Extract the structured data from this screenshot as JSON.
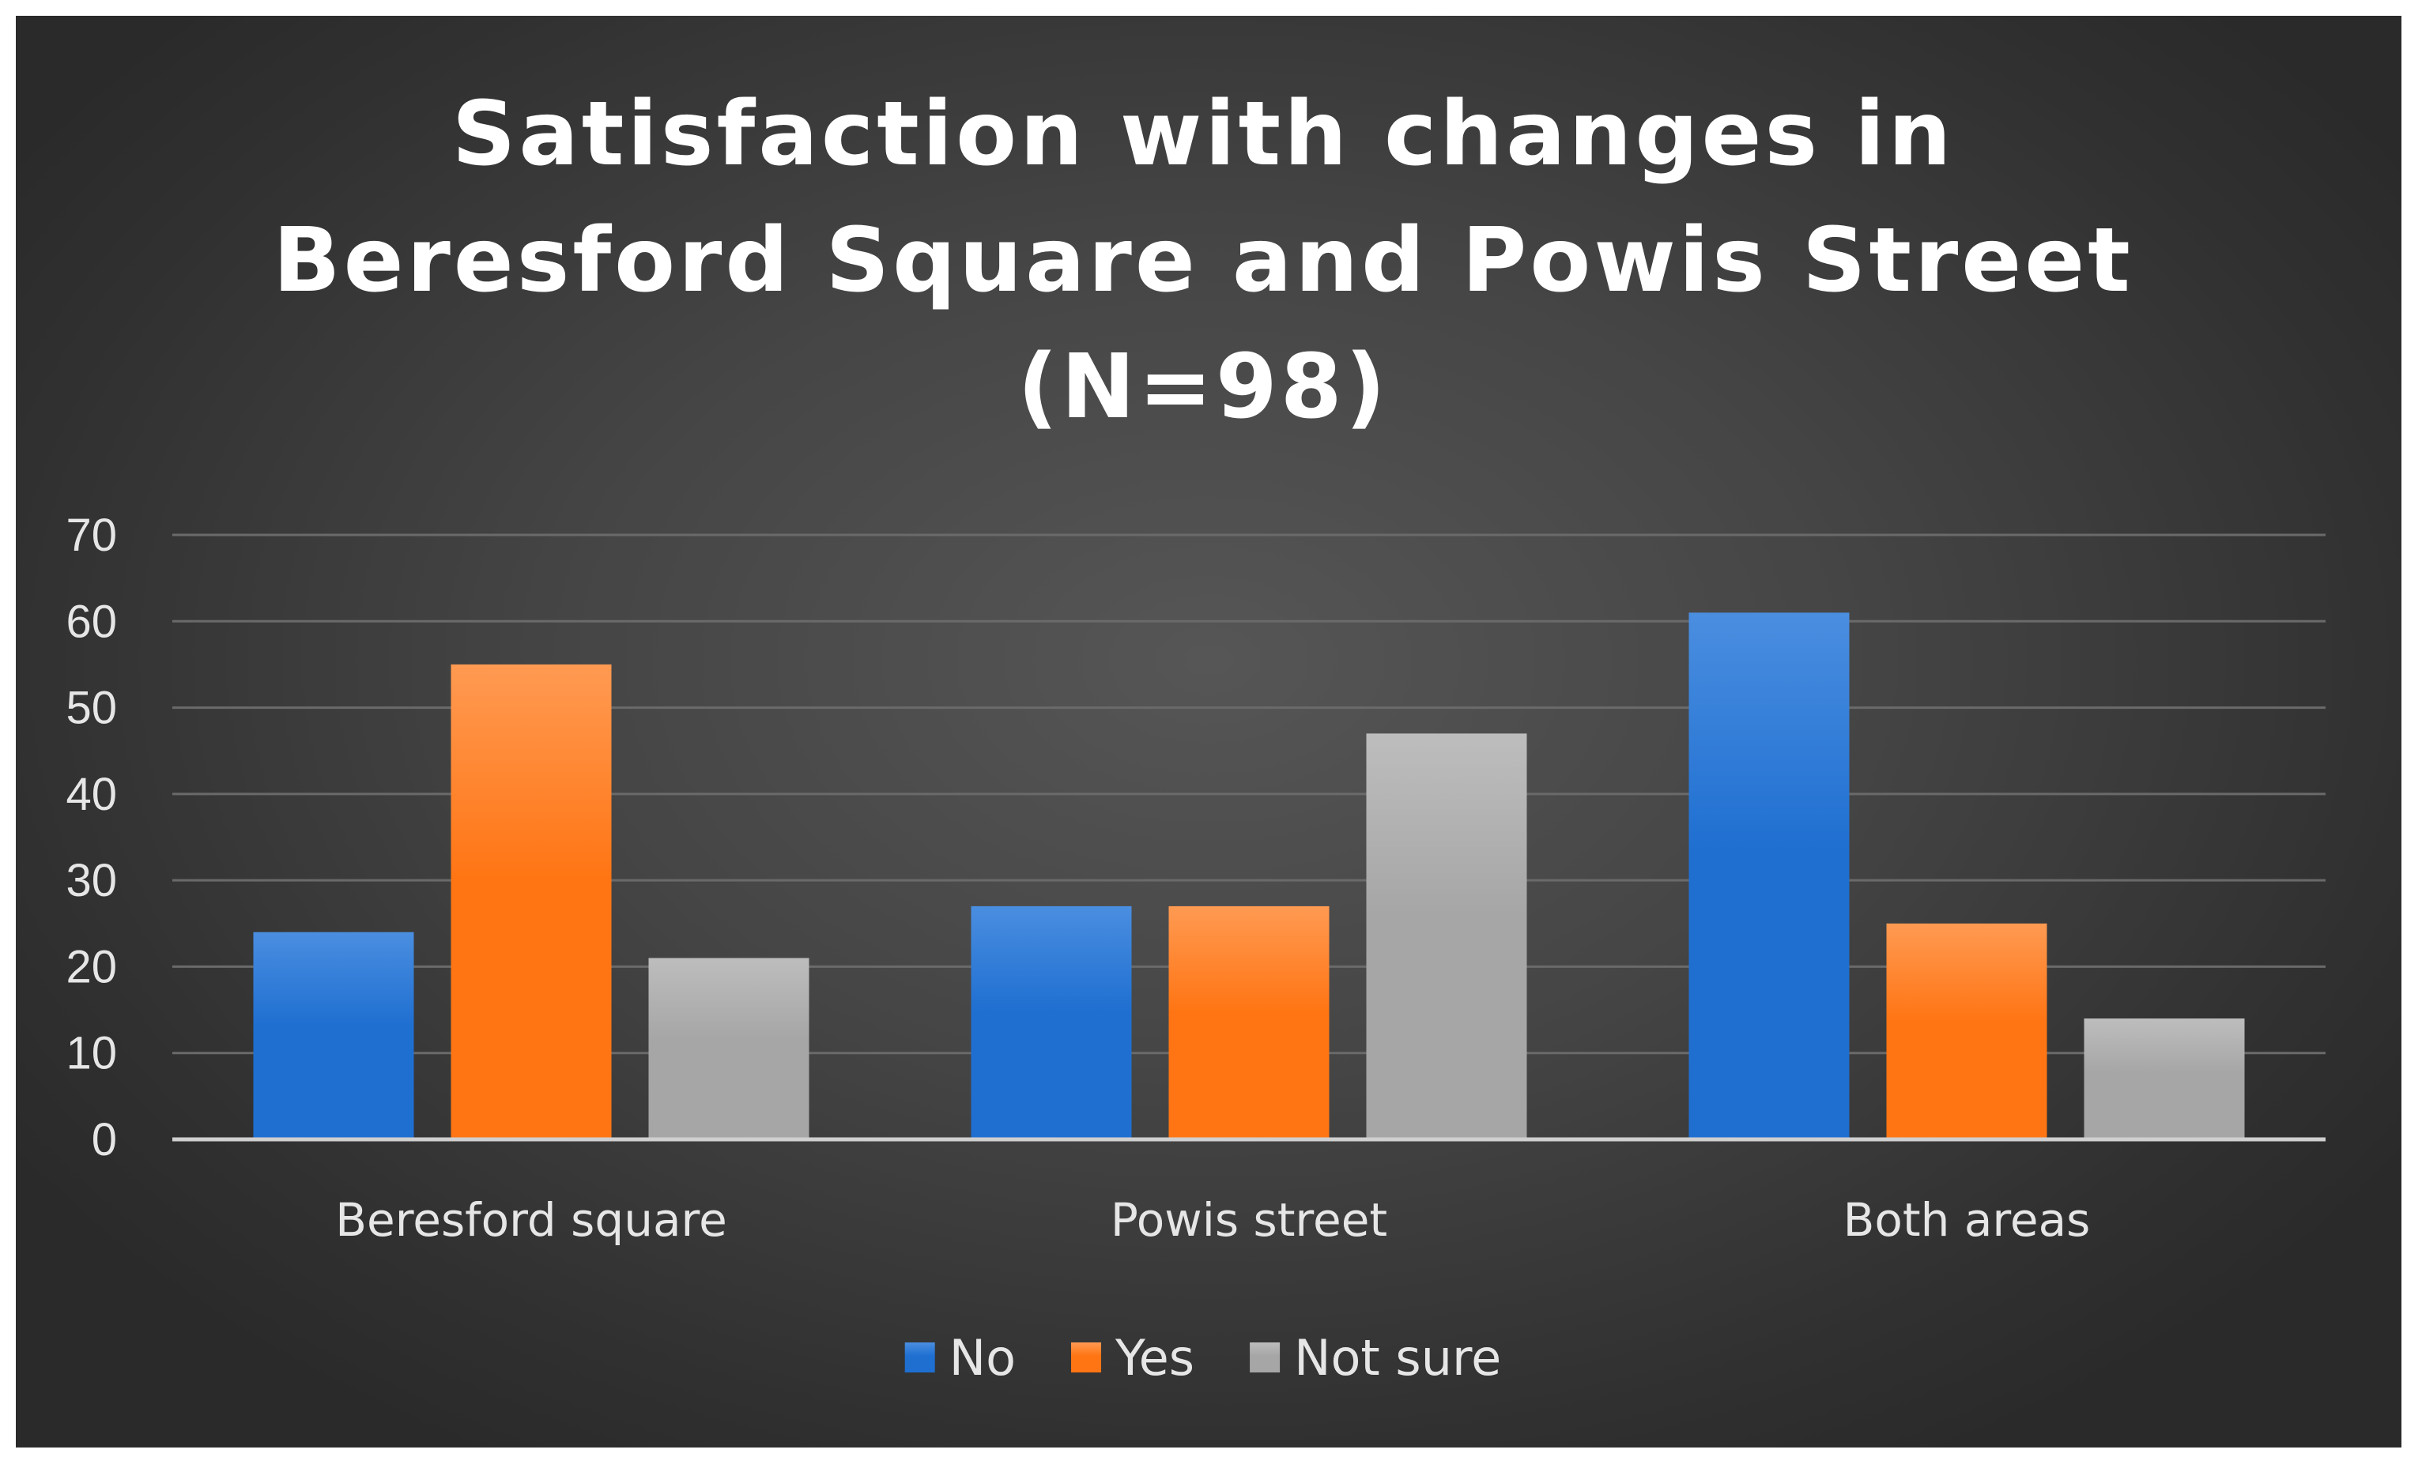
{
  "chart_data": {
    "type": "bar",
    "title": "Satisfaction with changes in Beresford Square and Powis Street (N=98)",
    "title_lines": [
      "Satisfaction with changes in",
      "Beresford Square and Powis Street",
      "(N=98)"
    ],
    "categories": [
      "Beresford square",
      "Powis street",
      "Both areas"
    ],
    "series": [
      {
        "name": "No",
        "values": [
          24,
          27,
          61
        ],
        "color": "#1f6fd1",
        "color_top": "#4a8ee0"
      },
      {
        "name": "Yes",
        "values": [
          55,
          27,
          25
        ],
        "color": "#ff7514",
        "color_top": "#ff9a52"
      },
      {
        "name": "Not sure",
        "values": [
          21,
          47,
          14
        ],
        "color": "#a6a6a6",
        "color_top": "#bdbdbd"
      }
    ],
    "xlabel": "",
    "ylabel": "",
    "ylim": [
      0,
      70
    ],
    "yticks": [
      0,
      10,
      20,
      30,
      40,
      50,
      60,
      70
    ],
    "grid": true,
    "legend_position": "bottom"
  }
}
